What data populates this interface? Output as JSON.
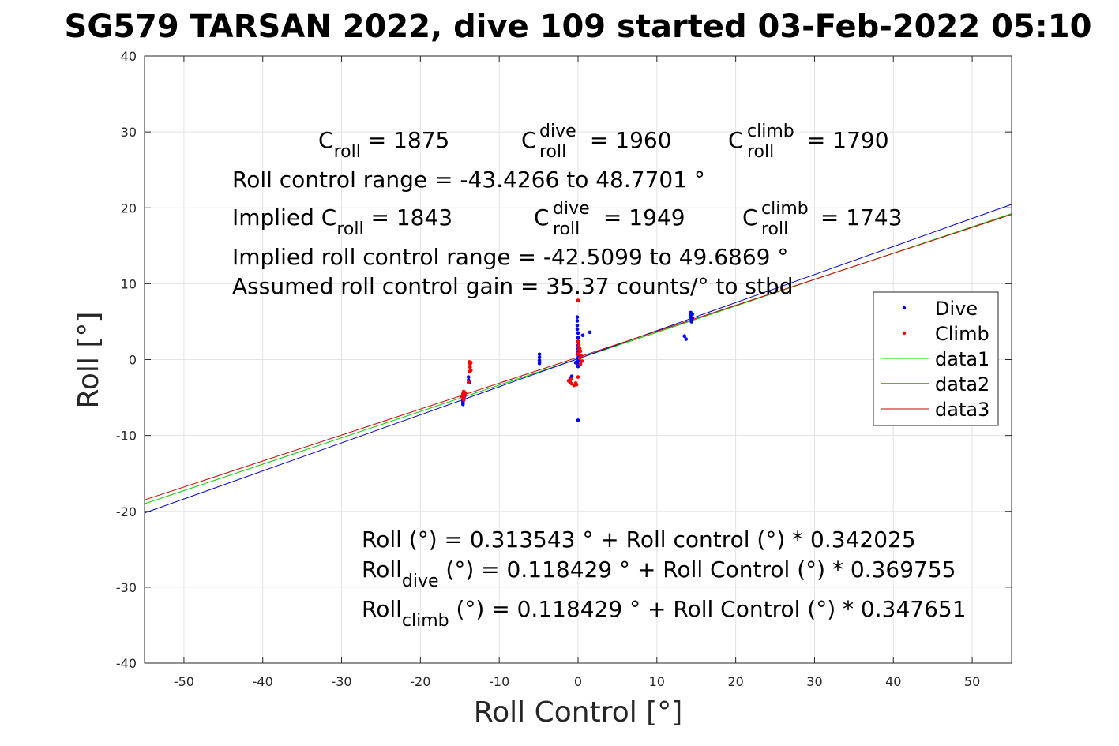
{
  "chart_data": {
    "type": "scatter",
    "title": "SG579 TARSAN 2022, dive 109 started 03-Feb-2022 05:10",
    "xlabel": "Roll Control [°]",
    "ylabel": "Roll [°]",
    "xlim": [
      -55,
      55
    ],
    "ylim": [
      -40,
      40
    ],
    "xticks": [
      -50,
      -40,
      -30,
      -20,
      -10,
      0,
      10,
      20,
      30,
      40,
      50
    ],
    "yticks": [
      -40,
      -30,
      -20,
      -10,
      0,
      10,
      20,
      30,
      40
    ],
    "grid": true,
    "legend_placement": "right",
    "legend": [
      "Dive",
      "Climb",
      "data1",
      "data2",
      "data3"
    ],
    "colors": {
      "dive": "#0000ff",
      "climb": "#ff0000",
      "data1": "#00cc00",
      "data2": "#0000cc",
      "data3": "#cc0000"
    },
    "series": [
      {
        "name": "Dive",
        "kind": "points",
        "points": [
          [
            -14.6,
            -5.9
          ],
          [
            -14.6,
            -5.6
          ],
          [
            -14.5,
            -5.3
          ],
          [
            -14.5,
            -5.0
          ],
          [
            -14.4,
            -4.8
          ],
          [
            -14.4,
            -4.6
          ],
          [
            -14.6,
            -5.4
          ],
          [
            -13.9,
            -2.3
          ],
          [
            -13.9,
            -2.7
          ],
          [
            -13.8,
            -3.0
          ],
          [
            -4.9,
            0.7
          ],
          [
            -4.9,
            0.3
          ],
          [
            -4.9,
            -0.1
          ],
          [
            -4.9,
            -0.5
          ],
          [
            -0.1,
            5.6
          ],
          [
            -0.1,
            5.1
          ],
          [
            -0.1,
            4.5
          ],
          [
            -0.1,
            4.0
          ],
          [
            0.0,
            3.5
          ],
          [
            0.0,
            2.9
          ],
          [
            0.0,
            2.4
          ],
          [
            0.0,
            1.9
          ],
          [
            0.0,
            1.4
          ],
          [
            0.0,
            1.0
          ],
          [
            0.0,
            0.6
          ],
          [
            0.0,
            0.2
          ],
          [
            0.0,
            -0.2
          ],
          [
            0.0,
            -0.6
          ],
          [
            0.0,
            -0.9
          ],
          [
            0.6,
            3.2
          ],
          [
            1.5,
            3.6
          ],
          [
            0.3,
            0.3
          ],
          [
            -0.3,
            -0.4
          ],
          [
            0.0,
            -8.0
          ],
          [
            -0.8,
            -2.2
          ],
          [
            -1.0,
            -2.5
          ],
          [
            13.5,
            3.1
          ],
          [
            13.7,
            2.7
          ],
          [
            14.3,
            6.2
          ],
          [
            14.3,
            5.9
          ],
          [
            14.3,
            5.6
          ],
          [
            14.4,
            5.3
          ],
          [
            14.4,
            5.0
          ],
          [
            14.5,
            6.0
          ],
          [
            14.5,
            5.5
          ]
        ]
      },
      {
        "name": "Climb",
        "kind": "points",
        "points": [
          [
            -14.5,
            -4.2
          ],
          [
            -14.6,
            -4.5
          ],
          [
            -14.6,
            -4.8
          ],
          [
            -14.5,
            -5.1
          ],
          [
            -14.4,
            -4.7
          ],
          [
            -14.7,
            -4.9
          ],
          [
            -14.5,
            -5.3
          ],
          [
            -14.3,
            -4.4
          ],
          [
            -13.8,
            -0.3
          ],
          [
            -13.7,
            -0.6
          ],
          [
            -13.7,
            -1.0
          ],
          [
            -13.6,
            -1.4
          ],
          [
            -13.8,
            -1.6
          ],
          [
            -13.6,
            -0.4
          ],
          [
            -13.9,
            -3.0
          ],
          [
            -1.2,
            -2.8
          ],
          [
            -1.0,
            -3.0
          ],
          [
            -0.8,
            -3.2
          ],
          [
            -0.5,
            -3.4
          ],
          [
            -0.3,
            -3.1
          ],
          [
            -0.9,
            -2.6
          ],
          [
            -0.2,
            -3.3
          ],
          [
            0.0,
            7.8
          ],
          [
            0.0,
            2.4
          ],
          [
            0.1,
            1.9
          ],
          [
            0.2,
            1.5
          ],
          [
            0.3,
            1.1
          ],
          [
            0.1,
            0.8
          ],
          [
            0.4,
            0.5
          ],
          [
            0.2,
            0.2
          ],
          [
            0.5,
            -0.2
          ],
          [
            0.3,
            -0.6
          ],
          [
            0.1,
            1.3
          ],
          [
            -0.1,
            0.7
          ],
          [
            0.0,
            -2.3
          ]
        ]
      },
      {
        "name": "data1",
        "kind": "line",
        "intercept": 0.118429,
        "slope": 0.347651,
        "x": [
          -55,
          55
        ]
      },
      {
        "name": "data2",
        "kind": "line",
        "intercept": 0.118429,
        "slope": 0.369755,
        "x": [
          -55,
          55
        ]
      },
      {
        "name": "data3",
        "kind": "line",
        "intercept": 0.313543,
        "slope": 0.342025,
        "x": [
          -55,
          55
        ]
      }
    ]
  },
  "annotations": {
    "c_roll_base": "C",
    "c_roll_sub": "roll",
    "c_roll_val": " = 1875",
    "c_dive_base": "C",
    "c_dive_sup": "dive",
    "c_dive_sub": "roll",
    "c_dive_val": " = 1960",
    "c_climb_base": "C",
    "c_climb_sup": "climb",
    "c_climb_sub": "roll",
    "c_climb_val": " = 1790",
    "range": "Roll control range = -43.4266 to 48.7701 °",
    "implied_prefix": "Implied C",
    "implied_sub": "roll",
    "implied_val": " = 1843",
    "implied_dive_base": "C",
    "implied_dive_sup": "dive",
    "implied_dive_sub": "roll",
    "implied_dive_val": " = 1949",
    "implied_climb_base": "C",
    "implied_climb_sup": "climb",
    "implied_climb_sub": "roll",
    "implied_climb_val": " = 1743",
    "implied_range": "Implied roll control range = -42.5099 to 49.6869 °",
    "gain": "Assumed roll control gain = 35.37 counts/° to stbd",
    "eq1": "Roll (°) = 0.313543 ° + Roll control (°) * 0.342025",
    "eq2_base": "Roll",
    "eq2_sub": "dive",
    "eq2_rest": " (°) = 0.118429 ° + Roll Control (°) * 0.369755",
    "eq3_base": "Roll",
    "eq3_sub": "climb",
    "eq3_rest": " (°) = 0.118429 ° + Roll Control (°) * 0.347651"
  }
}
